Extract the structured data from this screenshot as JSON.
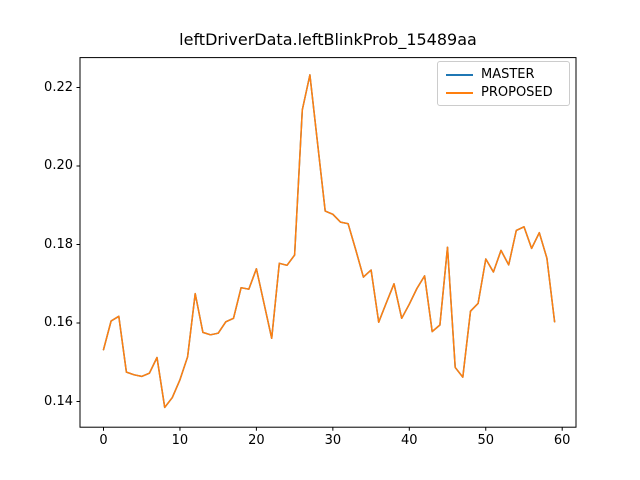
{
  "figure": {
    "background": "#ffffff",
    "text_color": "#000000"
  },
  "chart_data": {
    "type": "line",
    "title": "leftDriverData.leftBlinkProb_15489aa",
    "xlabel": "",
    "ylabel": "",
    "grid": false,
    "legend_position": "upper right",
    "x_ticks": [
      0,
      10,
      20,
      30,
      40,
      50,
      60
    ],
    "y_ticks": [
      "0.14",
      "0.16",
      "0.18",
      "0.20",
      "0.22"
    ],
    "xlim": [
      -2.95,
      61.95
    ],
    "ylim": [
      0.1335,
      0.2275
    ],
    "x": [
      0,
      1,
      2,
      3,
      4,
      5,
      6,
      7,
      8,
      9,
      10,
      11,
      12,
      13,
      14,
      15,
      16,
      17,
      18,
      19,
      20,
      21,
      22,
      23,
      24,
      25,
      26,
      27,
      28,
      29,
      30,
      31,
      32,
      33,
      34,
      35,
      36,
      37,
      38,
      39,
      40,
      41,
      42,
      43,
      44,
      45,
      46,
      47,
      48,
      49,
      50,
      51,
      52,
      53,
      54,
      55,
      56,
      57,
      58,
      59
    ],
    "series": [
      {
        "name": "MASTER",
        "color": "#1f77b4",
        "values": [
          0.1532,
          0.1605,
          0.1617,
          0.1475,
          0.1468,
          0.1464,
          0.1472,
          0.1512,
          0.1385,
          0.141,
          0.1455,
          0.1514,
          0.1675,
          0.1576,
          0.157,
          0.1574,
          0.1603,
          0.1612,
          0.169,
          0.1686,
          0.1738,
          0.165,
          0.1561,
          0.1752,
          0.1747,
          0.1773,
          0.2143,
          0.2232,
          0.2057,
          0.1885,
          0.1877,
          0.1857,
          0.1853,
          0.1786,
          0.1717,
          0.1735,
          0.1602,
          0.1652,
          0.17,
          0.1612,
          0.1648,
          0.1688,
          0.172,
          0.1578,
          0.1595,
          0.1793,
          0.1487,
          0.1462,
          0.163,
          0.165,
          0.1763,
          0.173,
          0.1785,
          0.1748,
          0.1836,
          0.1845,
          0.179,
          0.183,
          0.1765,
          0.1603
        ]
      },
      {
        "name": "PROPOSED",
        "color": "#ff7f0e",
        "values": [
          0.1532,
          0.1605,
          0.1617,
          0.1475,
          0.1468,
          0.1464,
          0.1472,
          0.1512,
          0.1385,
          0.141,
          0.1455,
          0.1514,
          0.1675,
          0.1576,
          0.157,
          0.1574,
          0.1603,
          0.1612,
          0.169,
          0.1686,
          0.1738,
          0.165,
          0.1561,
          0.1752,
          0.1747,
          0.1773,
          0.2143,
          0.2232,
          0.2057,
          0.1885,
          0.1877,
          0.1857,
          0.1853,
          0.1786,
          0.1717,
          0.1735,
          0.1602,
          0.1652,
          0.17,
          0.1612,
          0.1648,
          0.1688,
          0.172,
          0.1578,
          0.1595,
          0.1793,
          0.1487,
          0.1462,
          0.163,
          0.165,
          0.1763,
          0.173,
          0.1785,
          0.1748,
          0.1836,
          0.1845,
          0.179,
          0.183,
          0.1765,
          0.1603
        ]
      }
    ]
  }
}
